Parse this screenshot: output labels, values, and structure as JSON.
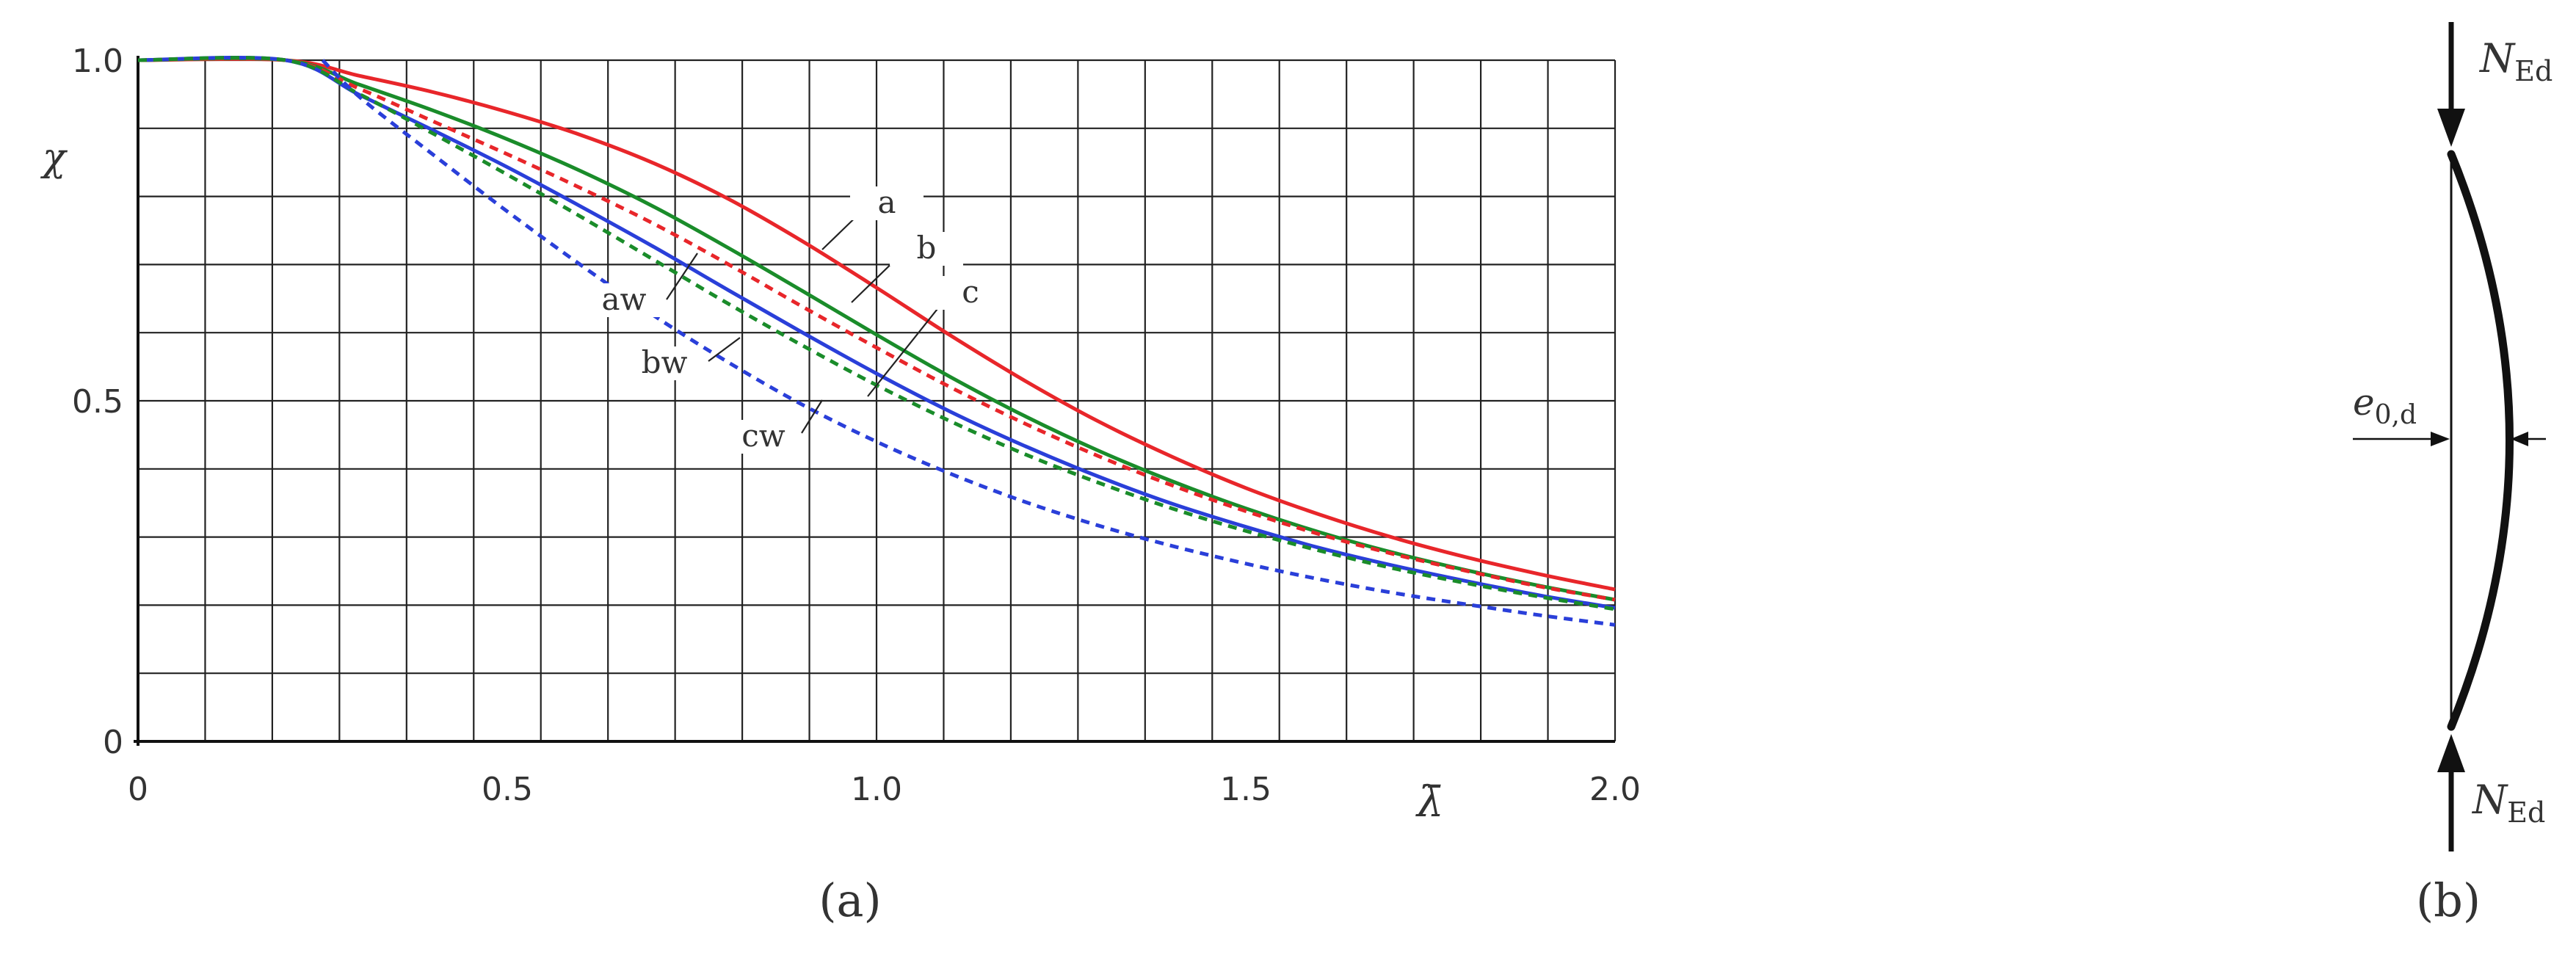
{
  "chart_data": {
    "type": "line",
    "xlabel": "λ̄",
    "ylabel": "χ",
    "xlim": [
      0,
      2.0
    ],
    "ylim": [
      0,
      1.0
    ],
    "x_ticks": [
      "0",
      "0.5",
      "1.0",
      "1.5",
      "2.0"
    ],
    "y_ticks": [
      "0",
      "0.5",
      "1.0"
    ],
    "grid": "on",
    "panel_label": "(a)",
    "series": [
      {
        "name": "a",
        "color": "#e8262a",
        "style": "solid",
        "x": [
          0,
          0.2,
          0.3,
          0.4,
          0.5,
          0.6,
          0.7,
          0.8,
          0.9,
          1.0,
          1.1,
          1.2,
          1.3,
          1.4,
          1.5,
          1.6,
          1.7,
          1.8,
          1.9,
          2.0
        ],
        "y": [
          1.0,
          1.0,
          0.977,
          0.953,
          0.924,
          0.89,
          0.848,
          0.796,
          0.734,
          0.666,
          0.596,
          0.53,
          0.47,
          0.418,
          0.372,
          0.333,
          0.299,
          0.27,
          0.245,
          0.223
        ]
      },
      {
        "name": "b",
        "color": "#1a8c2a",
        "style": "solid",
        "x": [
          0,
          0.2,
          0.3,
          0.4,
          0.5,
          0.6,
          0.7,
          0.8,
          0.9,
          1.0,
          1.1,
          1.2,
          1.3,
          1.4,
          1.5,
          1.6,
          1.7,
          1.8,
          1.9,
          2.0
        ],
        "y": [
          1.0,
          1.0,
          0.964,
          0.926,
          0.884,
          0.837,
          0.784,
          0.724,
          0.661,
          0.597,
          0.535,
          0.478,
          0.427,
          0.382,
          0.342,
          0.307,
          0.277,
          0.251,
          0.228,
          0.208
        ]
      },
      {
        "name": "c",
        "color": "#2a3fd9",
        "style": "solid",
        "x": [
          0,
          0.2,
          0.3,
          0.4,
          0.5,
          0.6,
          0.7,
          0.8,
          0.9,
          1.0,
          1.1,
          1.2,
          1.3,
          1.4,
          1.5,
          1.6,
          1.7,
          1.8,
          1.9,
          2.0
        ],
        "y": [
          1.0,
          1.0,
          0.949,
          0.897,
          0.843,
          0.785,
          0.725,
          0.662,
          0.6,
          0.54,
          0.484,
          0.434,
          0.389,
          0.349,
          0.315,
          0.284,
          0.258,
          0.235,
          0.214,
          0.196
        ]
      },
      {
        "name": "aw",
        "color": "#e8262a",
        "style": "dashed",
        "x": [
          0,
          0.2,
          0.3,
          0.4,
          0.5,
          0.6,
          0.7,
          0.8,
          0.9,
          1.0,
          1.1,
          1.2,
          1.3,
          1.4,
          1.5,
          1.6,
          1.7,
          1.8,
          1.9,
          2.0
        ],
        "y": [
          1.0,
          1.0,
          0.958,
          0.91,
          0.862,
          0.812,
          0.759,
          0.7,
          0.638,
          0.578,
          0.52,
          0.467,
          0.419,
          0.376,
          0.338,
          0.304,
          0.275,
          0.25,
          0.227,
          0.208
        ]
      },
      {
        "name": "bw",
        "color": "#1a8c2a",
        "style": "dashed",
        "x": [
          0,
          0.2,
          0.3,
          0.4,
          0.5,
          0.6,
          0.7,
          0.8,
          0.9,
          1.0,
          1.1,
          1.2,
          1.3,
          1.4,
          1.5,
          1.6,
          1.7,
          1.8,
          1.9,
          2.0
        ],
        "y": [
          1.0,
          1.0,
          0.95,
          0.892,
          0.832,
          0.77,
          0.706,
          0.642,
          0.581,
          0.523,
          0.47,
          0.422,
          0.38,
          0.342,
          0.309,
          0.28,
          0.254,
          0.232,
          0.212,
          0.194
        ]
      },
      {
        "name": "cw",
        "color": "#2a3fd9",
        "style": "dashed",
        "x": [
          0.25,
          0.3,
          0.4,
          0.5,
          0.6,
          0.7,
          0.8,
          0.9,
          1.0,
          1.1,
          1.2,
          1.3,
          1.4,
          1.5,
          1.6,
          1.7,
          1.8,
          1.9,
          2.0
        ],
        "y": [
          1.0,
          0.946,
          0.861,
          0.778,
          0.699,
          0.624,
          0.556,
          0.494,
          0.44,
          0.393,
          0.352,
          0.317,
          0.287,
          0.261,
          0.238,
          0.218,
          0.201,
          0.185,
          0.171
        ]
      }
    ]
  },
  "diagram_b": {
    "panel_label": "(b)",
    "force_top_main": "N",
    "force_top_sub": "Ed",
    "force_bottom_main": "N",
    "force_bottom_sub": "Ed",
    "eccentricity_main": "e",
    "eccentricity_sub": "0,d"
  }
}
